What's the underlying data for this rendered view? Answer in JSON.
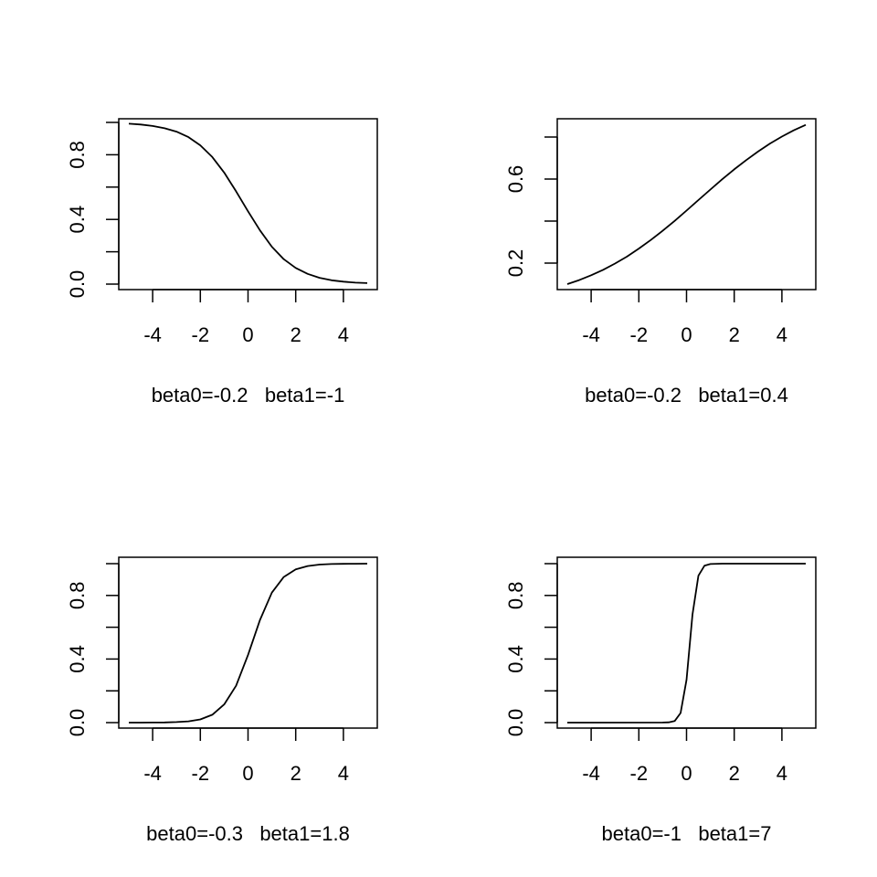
{
  "chart_data": [
    {
      "type": "line",
      "title": "",
      "xlabel": "beta0=-0.2   beta1=-1",
      "ylabel": "",
      "xlim": [
        -5,
        5
      ],
      "ylim": [
        0,
        1
      ],
      "x_ticks": [
        -4,
        -2,
        0,
        2,
        4
      ],
      "x_tick_labels": [
        "-4",
        "-2",
        "0",
        "2",
        "4"
      ],
      "y_ticks": [
        0,
        0.2,
        0.4,
        0.6,
        0.8,
        1.0
      ],
      "y_tick_labels": [
        "0.0",
        "",
        "0.4",
        "",
        "0.8",
        ""
      ],
      "grid": false,
      "series": [
        {
          "x": [
            -5,
            -4.5,
            -4,
            -3.5,
            -3,
            -2.5,
            -2,
            -1.5,
            -1,
            -0.5,
            0,
            0.5,
            1,
            1.5,
            2,
            2.5,
            3,
            3.5,
            4,
            4.5,
            5
          ],
          "y": [
            0.992,
            0.987,
            0.978,
            0.964,
            0.943,
            0.909,
            0.858,
            0.786,
            0.69,
            0.574,
            0.45,
            0.332,
            0.231,
            0.154,
            0.1,
            0.063,
            0.039,
            0.024,
            0.015,
            0.009,
            0.006
          ]
        }
      ]
    },
    {
      "type": "line",
      "title": "",
      "xlabel": "beta0=-0.2   beta1=0.4",
      "ylabel": "",
      "xlim": [
        -5,
        5
      ],
      "ylim": [
        0.1,
        0.86
      ],
      "x_ticks": [
        -4,
        -2,
        0,
        2,
        4
      ],
      "x_tick_labels": [
        "-4",
        "-2",
        "0",
        "2",
        "4"
      ],
      "y_ticks": [
        0.2,
        0.4,
        0.6,
        0.8
      ],
      "y_tick_labels": [
        "0.2",
        "",
        "0.6",
        ""
      ],
      "grid": false,
      "series": [
        {
          "x": [
            -5,
            -4.5,
            -4,
            -3.5,
            -3,
            -2.5,
            -2,
            -1.5,
            -1,
            -0.5,
            0,
            0.5,
            1,
            1.5,
            2,
            2.5,
            3,
            3.5,
            4,
            4.5,
            5
          ],
          "y": [
            0.1,
            0.119,
            0.142,
            0.168,
            0.198,
            0.231,
            0.269,
            0.31,
            0.354,
            0.401,
            0.45,
            0.5,
            0.55,
            0.599,
            0.646,
            0.69,
            0.731,
            0.769,
            0.802,
            0.832,
            0.858
          ]
        }
      ]
    },
    {
      "type": "line",
      "title": "",
      "xlabel": "beta0=-0.3   beta1=1.8",
      "ylabel": "",
      "xlim": [
        -5,
        5
      ],
      "ylim": [
        0,
        1
      ],
      "x_ticks": [
        -4,
        -2,
        0,
        2,
        4
      ],
      "x_tick_labels": [
        "-4",
        "-2",
        "0",
        "2",
        "4"
      ],
      "y_ticks": [
        0,
        0.2,
        0.4,
        0.6,
        0.8,
        1.0
      ],
      "y_tick_labels": [
        "0.0",
        "",
        "0.4",
        "",
        "0.8",
        ""
      ],
      "grid": false,
      "series": [
        {
          "x": [
            -5,
            -4.5,
            -4,
            -3.5,
            -3,
            -2.5,
            -2,
            -1.5,
            -1,
            -0.5,
            0,
            0.5,
            1,
            1.5,
            2,
            2.5,
            3,
            3.5,
            4,
            4.5,
            5
          ],
          "y": [
            0.0001,
            0.0002,
            0.0005,
            0.0013,
            0.0033,
            0.0083,
            0.0203,
            0.0492,
            0.1142,
            0.2315,
            0.4256,
            0.6457,
            0.8176,
            0.9163,
            0.9644,
            0.9853,
            0.994,
            0.9976,
            0.999,
            0.9996,
            0.9998
          ]
        }
      ]
    },
    {
      "type": "line",
      "title": "",
      "xlabel": "beta0=-1   beta1=7",
      "ylabel": "",
      "xlim": [
        -5,
        5
      ],
      "ylim": [
        0,
        1
      ],
      "x_ticks": [
        -4,
        -2,
        0,
        2,
        4
      ],
      "x_tick_labels": [
        "-4",
        "-2",
        "0",
        "2",
        "4"
      ],
      "y_ticks": [
        0,
        0.2,
        0.4,
        0.6,
        0.8,
        1.0
      ],
      "y_tick_labels": [
        "0.0",
        "",
        "0.4",
        "",
        "0.8",
        ""
      ],
      "grid": false,
      "series": [
        {
          "x": [
            -5,
            -1,
            -0.75,
            -0.5,
            -0.25,
            0,
            0.25,
            0.5,
            0.75,
            1,
            1.5,
            5
          ],
          "y": [
            0,
            0.0003,
            0.0017,
            0.0097,
            0.0601,
            0.2689,
            0.679,
            0.924,
            0.987,
            0.9975,
            0.9999,
            1
          ]
        }
      ]
    }
  ]
}
